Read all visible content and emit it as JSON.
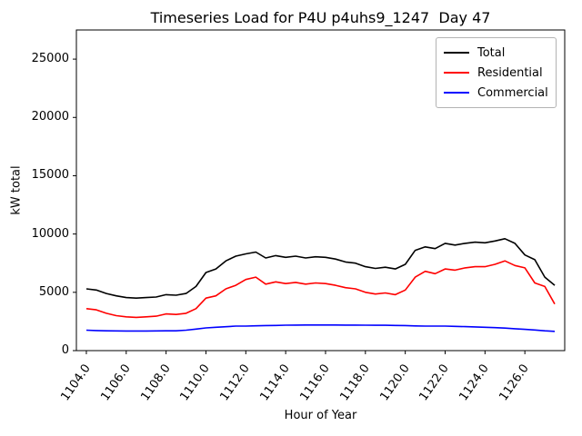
{
  "figure": {
    "background": "#ffffff"
  },
  "chart_data": {
    "type": "line",
    "title": "Timeseries Load for P4U p4uhs9_1247  Day 47",
    "xlabel": "Hour of Year",
    "ylabel": "kW total",
    "xlim": [
      1103.5,
      1128.0
    ],
    "ylim": [
      0,
      27500
    ],
    "grid": false,
    "legend_position": "upper right",
    "xticks": [
      1104,
      1106,
      1108,
      1110,
      1112,
      1114,
      1116,
      1118,
      1120,
      1122,
      1124,
      1126
    ],
    "xtick_labels": [
      "1104.0",
      "1106.0",
      "1108.0",
      "1110.0",
      "1112.0",
      "1114.0",
      "1116.0",
      "1118.0",
      "1120.0",
      "1122.0",
      "1124.0",
      "1126.0"
    ],
    "yticks": [
      0,
      5000,
      10000,
      15000,
      20000,
      25000
    ],
    "ytick_labels": [
      "0",
      "5000",
      "10000",
      "15000",
      "20000",
      "25000"
    ],
    "x": [
      1104.0,
      1104.5,
      1105.0,
      1105.5,
      1106.0,
      1106.5,
      1107.0,
      1107.5,
      1108.0,
      1108.5,
      1109.0,
      1109.5,
      1110.0,
      1110.5,
      1111.0,
      1111.5,
      1112.0,
      1112.5,
      1113.0,
      1113.5,
      1114.0,
      1114.5,
      1115.0,
      1115.5,
      1116.0,
      1116.5,
      1117.0,
      1117.5,
      1118.0,
      1118.5,
      1119.0,
      1119.5,
      1120.0,
      1120.5,
      1121.0,
      1121.5,
      1122.0,
      1122.5,
      1123.0,
      1123.5,
      1124.0,
      1124.5,
      1125.0,
      1125.5,
      1126.0,
      1126.5,
      1127.0,
      1127.5
    ],
    "series": [
      {
        "name": "Total",
        "color": "#000000",
        "values": [
          5300,
          5200,
          4900,
          4700,
          4550,
          4500,
          4550,
          4600,
          4800,
          4750,
          4900,
          5500,
          6700,
          7000,
          7700,
          8100,
          8300,
          8450,
          7950,
          8150,
          8000,
          8100,
          7950,
          8050,
          8000,
          7850,
          7600,
          7500,
          7200,
          7050,
          7150,
          7000,
          7400,
          8600,
          8900,
          8750,
          9200,
          9050,
          9200,
          9300,
          9250,
          9400,
          9600,
          9200,
          8200,
          7800,
          6300,
          5600
        ]
      },
      {
        "name": "Residential",
        "color": "#ff0000",
        "values": [
          3600,
          3500,
          3200,
          3000,
          2900,
          2850,
          2900,
          2950,
          3150,
          3100,
          3200,
          3600,
          4500,
          4700,
          5300,
          5600,
          6100,
          6300,
          5700,
          5900,
          5750,
          5850,
          5700,
          5800,
          5750,
          5600,
          5400,
          5300,
          5000,
          4850,
          4950,
          4800,
          5200,
          6300,
          6800,
          6600,
          7000,
          6900,
          7100,
          7200,
          7200,
          7400,
          7700,
          7300,
          7100,
          5800,
          5500,
          4000
        ]
      },
      {
        "name": "Commercial",
        "color": "#0000ff",
        "values": [
          1750,
          1720,
          1700,
          1690,
          1680,
          1680,
          1680,
          1690,
          1700,
          1700,
          1750,
          1850,
          1950,
          2000,
          2050,
          2100,
          2100,
          2130,
          2150,
          2160,
          2180,
          2190,
          2200,
          2200,
          2200,
          2200,
          2190,
          2190,
          2180,
          2170,
          2170,
          2160,
          2150,
          2120,
          2100,
          2100,
          2100,
          2080,
          2060,
          2030,
          2000,
          1970,
          1930,
          1880,
          1820,
          1770,
          1700,
          1650
        ]
      }
    ]
  }
}
